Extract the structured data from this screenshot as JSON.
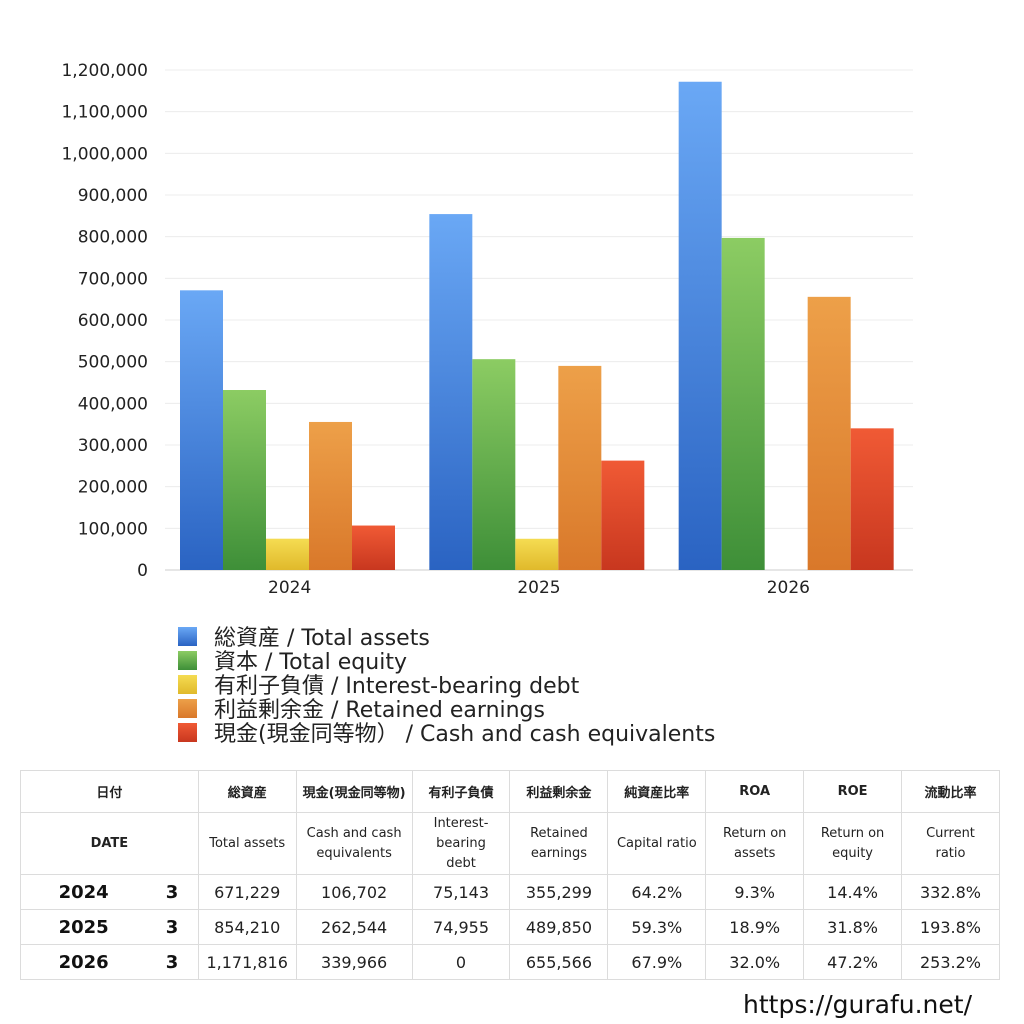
{
  "chart_data": {
    "type": "bar",
    "categories": [
      "2024",
      "2025",
      "2026"
    ],
    "series": [
      {
        "name": "総資産 / Total assets",
        "values": [
          671229,
          854210,
          1171816
        ],
        "color_top": "#6aa8f5",
        "color_bottom": "#2a63c2"
      },
      {
        "name": "資本 / Total equity",
        "values": [
          432000,
          506000,
          797000
        ],
        "color_top": "#8ccc63",
        "color_bottom": "#3e8f38"
      },
      {
        "name": "有利子負債 / Interest-bearing debt",
        "values": [
          75143,
          74955,
          0
        ],
        "color_top": "#f5dc52",
        "color_bottom": "#e0b92b"
      },
      {
        "name": "利益剰余金 / Retained earnings",
        "values": [
          355299,
          489850,
          655566
        ],
        "color_top": "#eda049",
        "color_bottom": "#d9782a"
      },
      {
        "name": "現金(現金同等物）  /  Cash and cash equivalents",
        "values": [
          106702,
          262544,
          339966
        ],
        "color_top": "#f05a35",
        "color_bottom": "#c8371f"
      }
    ],
    "y_ticks": [
      "0",
      "100,000",
      "200,000",
      "300,000",
      "400,000",
      "500,000",
      "600,000",
      "700,000",
      "800,000",
      "900,000",
      "1,000,000",
      "1,100,000",
      "1,200,000"
    ],
    "ylim": [
      0,
      1200000
    ],
    "grid": true,
    "legend_position": "bottom"
  },
  "table": {
    "header_jp": [
      "日付",
      "",
      "総資産",
      "現金(現金同等物)",
      "有利子負債",
      "利益剰余金",
      "純資産比率",
      "ROA",
      "ROE",
      "流動比率"
    ],
    "header_en": [
      "DATE",
      "",
      "Total assets",
      "Cash and cash\nequivalents",
      "Interest-\nbearing\ndebt",
      "Retained\nearnings",
      "Capital ratio",
      "Return on\nassets",
      "Return on\nequity",
      "Current\nratio"
    ],
    "rows": [
      {
        "year": "2024",
        "month": "3",
        "total_assets": "671,229",
        "cash": "106,702",
        "debt": "75,143",
        "retained": "355,299",
        "capital_ratio": "64.2%",
        "roa": "9.3%",
        "roe": "14.4%",
        "current_ratio": "332.8%"
      },
      {
        "year": "2025",
        "month": "3",
        "total_assets": "854,210",
        "cash": "262,544",
        "debt": "74,955",
        "retained": "489,850",
        "capital_ratio": "59.3%",
        "roa": "18.9%",
        "roe": "31.8%",
        "current_ratio": "193.8%"
      },
      {
        "year": "2026",
        "month": "3",
        "total_assets": "1,171,816",
        "cash": "339,966",
        "debt": "0",
        "retained": "655,566",
        "capital_ratio": "67.9%",
        "roa": "32.0%",
        "roe": "47.2%",
        "current_ratio": "253.2%"
      }
    ]
  },
  "footer": {
    "url": "https://gurafu.net/"
  }
}
